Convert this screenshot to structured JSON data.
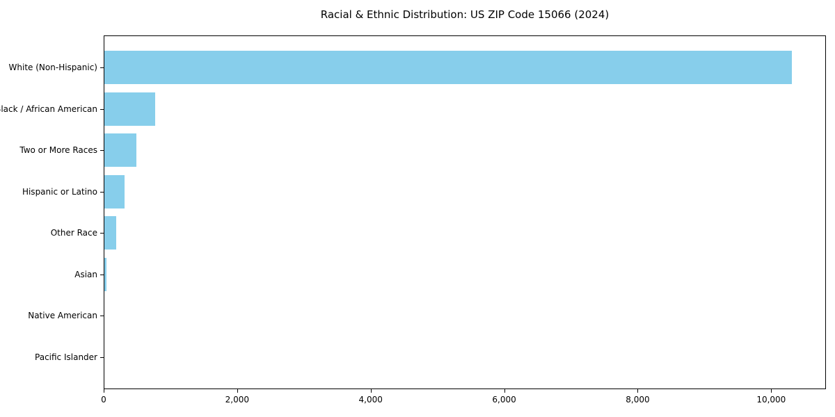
{
  "chart_data": {
    "type": "bar",
    "orientation": "horizontal",
    "title": "Racial & Ethnic Distribution: US ZIP Code 15066 (2024)",
    "categories": [
      "White (Non-Hispanic)",
      "Black / African American",
      "Two or More Races",
      "Hispanic or Latino",
      "Other Race",
      "Asian",
      "Native American",
      "Pacific Islander"
    ],
    "values": [
      10300,
      760,
      480,
      300,
      180,
      30,
      0,
      0
    ],
    "xlabel": "",
    "ylabel": "",
    "xlim": [
      0,
      10820
    ],
    "x_ticks": [
      0,
      2000,
      4000,
      6000,
      8000,
      10000
    ],
    "x_tick_labels": [
      "0",
      "2,000",
      "4,000",
      "6,000",
      "8,000",
      "10,000"
    ],
    "bar_color": "#87CEEB",
    "background_color": "#ffffff",
    "axis_color": "#000000",
    "grid": false,
    "legend": null
  }
}
